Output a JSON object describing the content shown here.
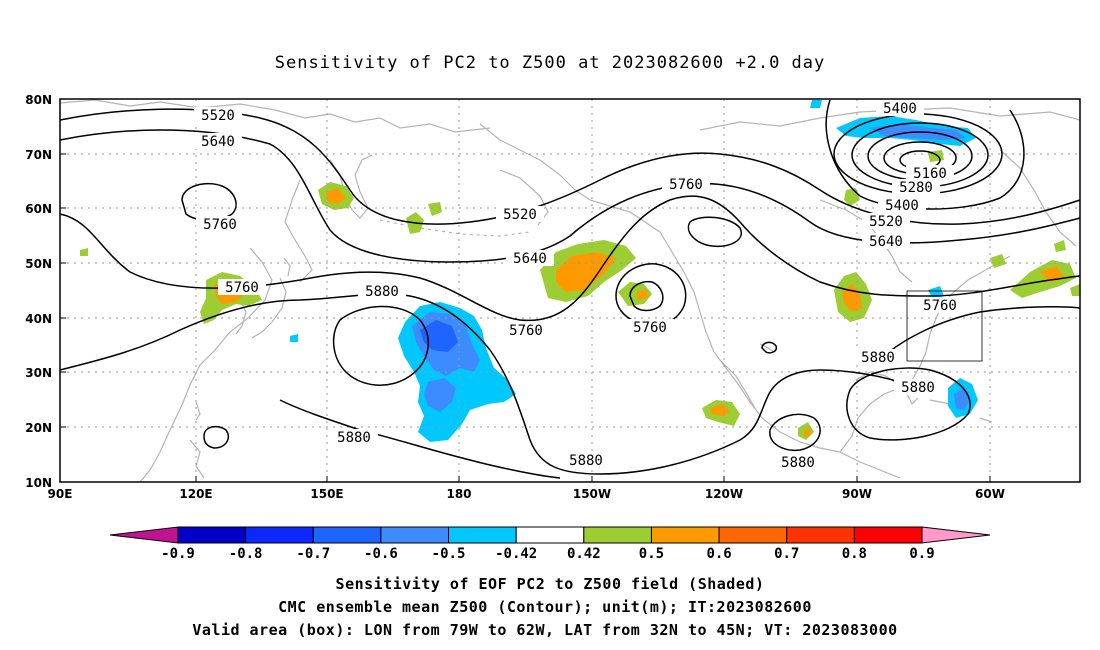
{
  "title": "Sensitivity of PC2 to Z500 at 2023082600 +2.0 day",
  "map": {
    "lat_labels": [
      "80N",
      "70N",
      "60N",
      "50N",
      "40N",
      "30N",
      "20N",
      "10N"
    ],
    "lon_labels": [
      "90E",
      "120E",
      "150E",
      "180",
      "150W",
      "120W",
      "90W",
      "60W"
    ],
    "lat_range": [
      10,
      80
    ],
    "lon_range": [
      "90E",
      "45W"
    ],
    "grid": "dotted",
    "coastline_color": "#b4b4b4"
  },
  "contour_labels": [
    {
      "id": "c1",
      "text": "5520"
    },
    {
      "id": "c2",
      "text": "5640"
    },
    {
      "id": "c3",
      "text": "5760"
    },
    {
      "id": "c4",
      "text": "5760"
    },
    {
      "id": "c5",
      "text": "5880"
    },
    {
      "id": "c6",
      "text": "5520"
    },
    {
      "id": "c7",
      "text": "5640"
    },
    {
      "id": "c8",
      "text": "5760"
    },
    {
      "id": "c9",
      "text": "5760"
    },
    {
      "id": "c10",
      "text": "5760"
    },
    {
      "id": "c11",
      "text": "5880"
    },
    {
      "id": "c12",
      "text": "5880"
    },
    {
      "id": "c13",
      "text": "5400"
    },
    {
      "id": "c14",
      "text": "5160"
    },
    {
      "id": "c15",
      "text": "5280"
    },
    {
      "id": "c16",
      "text": "5400"
    },
    {
      "id": "c17",
      "text": "5520"
    },
    {
      "id": "c18",
      "text": "5640"
    },
    {
      "id": "c19",
      "text": "5760"
    },
    {
      "id": "c20",
      "text": "5880"
    },
    {
      "id": "c21",
      "text": "5880"
    },
    {
      "id": "c22",
      "text": "5880"
    }
  ],
  "colorbar": {
    "labels": [
      "-0.9",
      "-0.8",
      "-0.7",
      "-0.6",
      "-0.5",
      "-0.42",
      "0.42",
      "0.5",
      "0.6",
      "0.7",
      "0.8",
      "0.9"
    ],
    "colors": [
      "#0000c8",
      "#0a28ff",
      "#1e64ff",
      "#3c8cff",
      "#00c8ff",
      "#ffffff",
      "#9ccd32",
      "#ff9900",
      "#ff6600",
      "#ff3300",
      "#ff0000"
    ],
    "low_extend_color": "#c0138f",
    "high_extend_color": "#ff99cc"
  },
  "valid_box": {
    "lon_west": "79W",
    "lon_east": "62W",
    "lat_south": "32N",
    "lat_north": "45N"
  },
  "captions": [
    "Sensitivity of EOF PC2 to Z500 field (Shaded)",
    "CMC ensemble mean Z500 (Contour); unit(m); IT:2023082600",
    "Valid area (box): LON from 79W to 62W, LAT from 32N to 45N; VT: 2023083000"
  ]
}
